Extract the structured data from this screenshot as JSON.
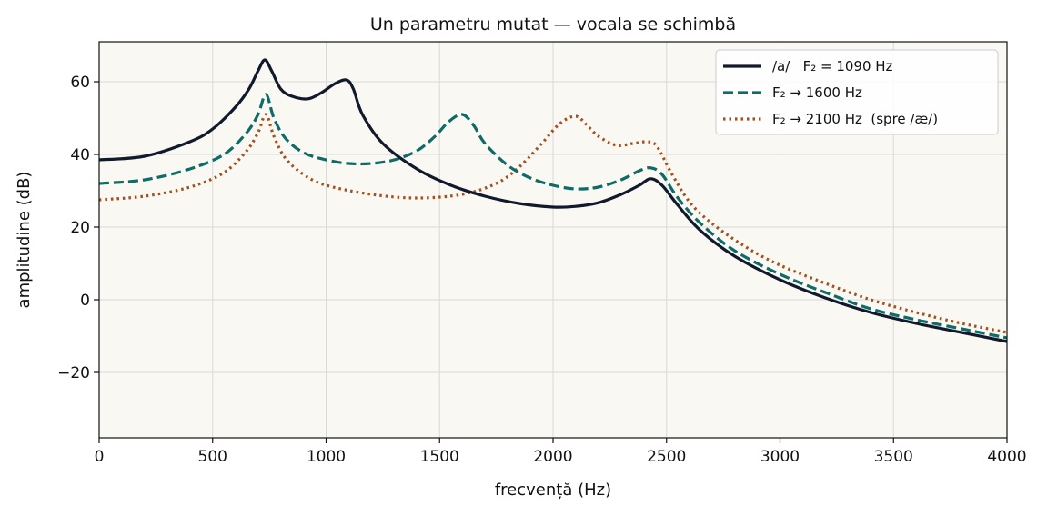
{
  "chart_data": {
    "type": "line",
    "title": "Un parametru mutat — vocala se schimbă",
    "xlabel": "frecvență (Hz)",
    "ylabel": "amplitudine (dB)",
    "xlim": [
      0,
      4000
    ],
    "ylim": [
      -38,
      71
    ],
    "xticks": [
      0,
      500,
      1000,
      1500,
      2000,
      2500,
      3000,
      3500,
      4000
    ],
    "xtick_labels": [
      "0",
      "500",
      "1000",
      "1500",
      "2000",
      "2500",
      "3000",
      "3500",
      "4000"
    ],
    "yticks": [
      -20,
      0,
      20,
      40,
      60
    ],
    "ytick_labels": [
      "−20",
      "0",
      "20",
      "40",
      "60"
    ],
    "grid": true,
    "legend_position": "top-right",
    "background_color": "#faf8f3",
    "series": [
      {
        "name": "/a/   F₂ = 1090 Hz",
        "color": "#111a2c",
        "dash": "solid",
        "x": [
          0,
          200,
          400,
          500,
          600,
          660,
          700,
          730,
          760,
          800,
          850,
          920,
          980,
          1040,
          1090,
          1120,
          1160,
          1250,
          1400,
          1550,
          1700,
          1850,
          2000,
          2100,
          2200,
          2300,
          2380,
          2430,
          2480,
          2550,
          2650,
          2800,
          3000,
          3200,
          3400,
          3600,
          3800,
          4000
        ],
        "y": [
          38.5,
          39.5,
          43.5,
          47,
          53,
          58,
          63,
          66,
          63,
          58,
          56,
          55.3,
          57,
          59.5,
          60.5,
          58,
          51,
          43,
          36,
          31.5,
          28.5,
          26.5,
          25.5,
          25.7,
          26.7,
          29,
          31.5,
          33.3,
          31.5,
          26,
          19,
          12,
          5.5,
          0.5,
          -3.5,
          -6.5,
          -9,
          -11.5
        ]
      },
      {
        "name": "F₂ → 1600 Hz",
        "color": "#0e6b66",
        "dash": "dashed",
        "x": [
          0,
          200,
          400,
          550,
          650,
          700,
          735,
          770,
          820,
          900,
          1000,
          1100,
          1200,
          1300,
          1400,
          1480,
          1540,
          1600,
          1650,
          1700,
          1800,
          1900,
          2000,
          2100,
          2200,
          2300,
          2380,
          2430,
          2480,
          2550,
          2650,
          2800,
          3000,
          3200,
          3400,
          3600,
          3800,
          4000
        ],
        "y": [
          32,
          33,
          36,
          40,
          46,
          51,
          56.5,
          50,
          44.5,
          40.5,
          38.5,
          37.5,
          37.5,
          38.5,
          41,
          45,
          49,
          51,
          48,
          43,
          37,
          33.5,
          31.5,
          30.5,
          31,
          33,
          35.5,
          36.3,
          34.5,
          28,
          21,
          13.5,
          7,
          2,
          -2.5,
          -5.5,
          -8,
          -10.5
        ]
      },
      {
        "name": "F₂ → 2100 Hz  (spre /æ/)",
        "color": "#a3501c",
        "dash": "dotted",
        "x": [
          0,
          200,
          400,
          550,
          650,
          700,
          735,
          770,
          820,
          900,
          1000,
          1200,
          1400,
          1600,
          1750,
          1850,
          1950,
          2030,
          2100,
          2150,
          2200,
          2280,
          2350,
          2420,
          2460,
          2520,
          2600,
          2700,
          2850,
          3000,
          3200,
          3400,
          3600,
          3800,
          4000
        ],
        "y": [
          27.5,
          28.5,
          31,
          35,
          41,
          46,
          51,
          45,
          39,
          34.5,
          31.5,
          29,
          28,
          29,
          32,
          36.5,
          43,
          48.5,
          50.5,
          48,
          45,
          42.5,
          43,
          43.5,
          42,
          35,
          27,
          21,
          14.5,
          9.5,
          4.5,
          0,
          -3.5,
          -6.5,
          -9
        ]
      }
    ]
  }
}
